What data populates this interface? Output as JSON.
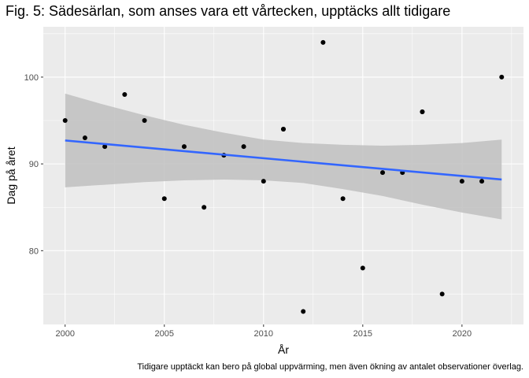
{
  "chart_data": {
    "type": "scatter",
    "title": "Fig. 5: Sädesärlan, som anses vara ett vårtecken, upptäcks allt tidigare",
    "xlabel": "År",
    "ylabel": "Dag på året",
    "caption": "Tidigare upptäckt kan bero på global uppvärming, men även ökning av antalet observationer överlag.",
    "xlim": [
      1998.9,
      2023.1
    ],
    "ylim": [
      71.5,
      105.8
    ],
    "x_ticks": [
      2000,
      2005,
      2010,
      2015,
      2020
    ],
    "x_tick_labels": [
      "2000",
      "2005",
      "2010",
      "2015",
      "2020"
    ],
    "y_ticks": [
      80,
      90,
      100
    ],
    "y_tick_labels": [
      "80",
      "90",
      "100"
    ],
    "grid": true,
    "panel_background": "#ebebeb",
    "point_color": "#000000",
    "trend_color": "#3366ff",
    "band_color": "#bfbfbf",
    "points": [
      {
        "x": 2000,
        "y": 95
      },
      {
        "x": 2001,
        "y": 93
      },
      {
        "x": 2002,
        "y": 92
      },
      {
        "x": 2003,
        "y": 98
      },
      {
        "x": 2004,
        "y": 95
      },
      {
        "x": 2005,
        "y": 86
      },
      {
        "x": 2006,
        "y": 92
      },
      {
        "x": 2007,
        "y": 85
      },
      {
        "x": 2008,
        "y": 91
      },
      {
        "x": 2009,
        "y": 92
      },
      {
        "x": 2010,
        "y": 88
      },
      {
        "x": 2011,
        "y": 94
      },
      {
        "x": 2011,
        "y": 94
      },
      {
        "x": 2012,
        "y": 73
      },
      {
        "x": 2013,
        "y": 104
      },
      {
        "x": 2014,
        "y": 86
      },
      {
        "x": 2015,
        "y": 78
      },
      {
        "x": 2016,
        "y": 89
      },
      {
        "x": 2017,
        "y": 89
      },
      {
        "x": 2018,
        "y": 96
      },
      {
        "x": 2018,
        "y": 96
      },
      {
        "x": 2019,
        "y": 75
      },
      {
        "x": 2020,
        "y": 88
      },
      {
        "x": 2021,
        "y": 88
      },
      {
        "x": 2022,
        "y": 100
      }
    ],
    "trend_line": {
      "x": [
        2000,
        2022
      ],
      "y": [
        92.7,
        88.2
      ]
    },
    "confidence_band": {
      "x": [
        2000,
        2002,
        2004,
        2006,
        2008,
        2010,
        2012,
        2014,
        2016,
        2018,
        2020,
        2022
      ],
      "upper": [
        98.1,
        96.8,
        95.6,
        94.5,
        93.6,
        92.8,
        92.4,
        92.2,
        92.1,
        92.2,
        92.4,
        92.8
      ],
      "lower": [
        87.3,
        87.6,
        87.9,
        88.1,
        88.2,
        88.1,
        87.8,
        87.1,
        86.3,
        85.3,
        84.4,
        83.6
      ]
    }
  }
}
